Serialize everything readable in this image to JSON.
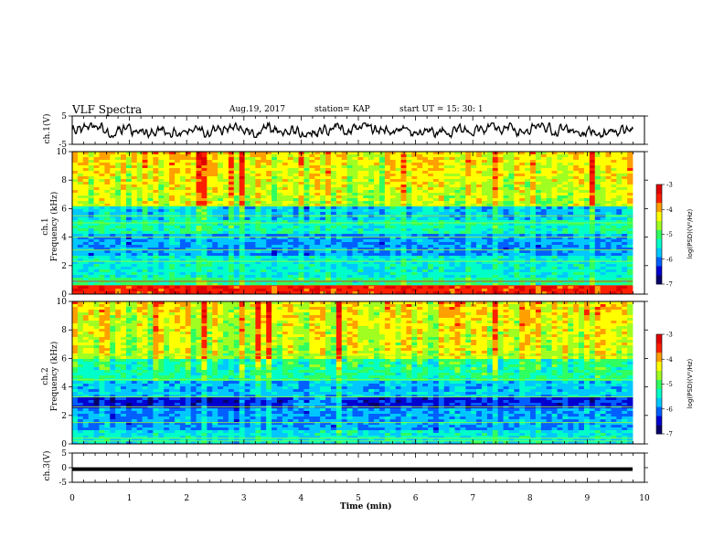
{
  "header": {
    "title": "VLF Spectra",
    "date": "Aug.19, 2017",
    "station": "station= KAP",
    "start": "start  UT  =   15: 30: 1"
  },
  "colors": {
    "spectrum": [
      "#08006a",
      "#0000d0",
      "#0060ff",
      "#00c8ff",
      "#00ffc8",
      "#30ff60",
      "#a0ff20",
      "#ffff00",
      "#ffa000",
      "#ff2000",
      "#e00000"
    ],
    "waveform": "#000000"
  },
  "chart_data": [
    {
      "type": "line",
      "name": "ch1-waveform",
      "ylabel": "ch.1(V)",
      "ylim": [
        -5,
        5
      ],
      "yticks": [
        "5",
        "-5"
      ],
      "xlim": [
        0,
        10
      ],
      "amplitude_range": [
        -2.5,
        2.5
      ],
      "duration_min": 9.8
    },
    {
      "type": "heatmap",
      "name": "ch1-spectrogram",
      "ylabel": "ch.1\nFrequency (kHz)",
      "ylim": [
        0,
        10
      ],
      "yticks": [
        "0",
        "2",
        "4",
        "6",
        "8",
        "10"
      ],
      "xlim": [
        0,
        10
      ],
      "colorbar": {
        "label": "log(PSD)(V²/Hz)",
        "range": [
          -7,
          -3
        ],
        "ticks": [
          "-3",
          "-4",
          "-5",
          "-6",
          "-7"
        ]
      }
    },
    {
      "type": "heatmap",
      "name": "ch2-spectrogram",
      "ylabel": "ch.2\nFrequency (kHz)",
      "ylim": [
        0,
        10
      ],
      "yticks": [
        "0",
        "2",
        "4",
        "6",
        "8",
        "10"
      ],
      "xlim": [
        0,
        10
      ],
      "colorbar": {
        "label": "log(PSD)(V²/Hz)",
        "range": [
          -7,
          -3
        ],
        "ticks": [
          "-3",
          "-4",
          "-5",
          "-6",
          "-7"
        ]
      }
    },
    {
      "type": "line",
      "name": "ch3-signal",
      "ylabel": "ch.3(V)",
      "ylim": [
        -5,
        5
      ],
      "yticks": [
        "5",
        "0",
        "-5"
      ],
      "xlim": [
        0,
        10
      ],
      "constant_value": -0.5,
      "xlabel": "Time  (min)",
      "xticks": [
        "0",
        "1",
        "2",
        "3",
        "4",
        "5",
        "6",
        "7",
        "8",
        "9",
        "10"
      ]
    }
  ]
}
